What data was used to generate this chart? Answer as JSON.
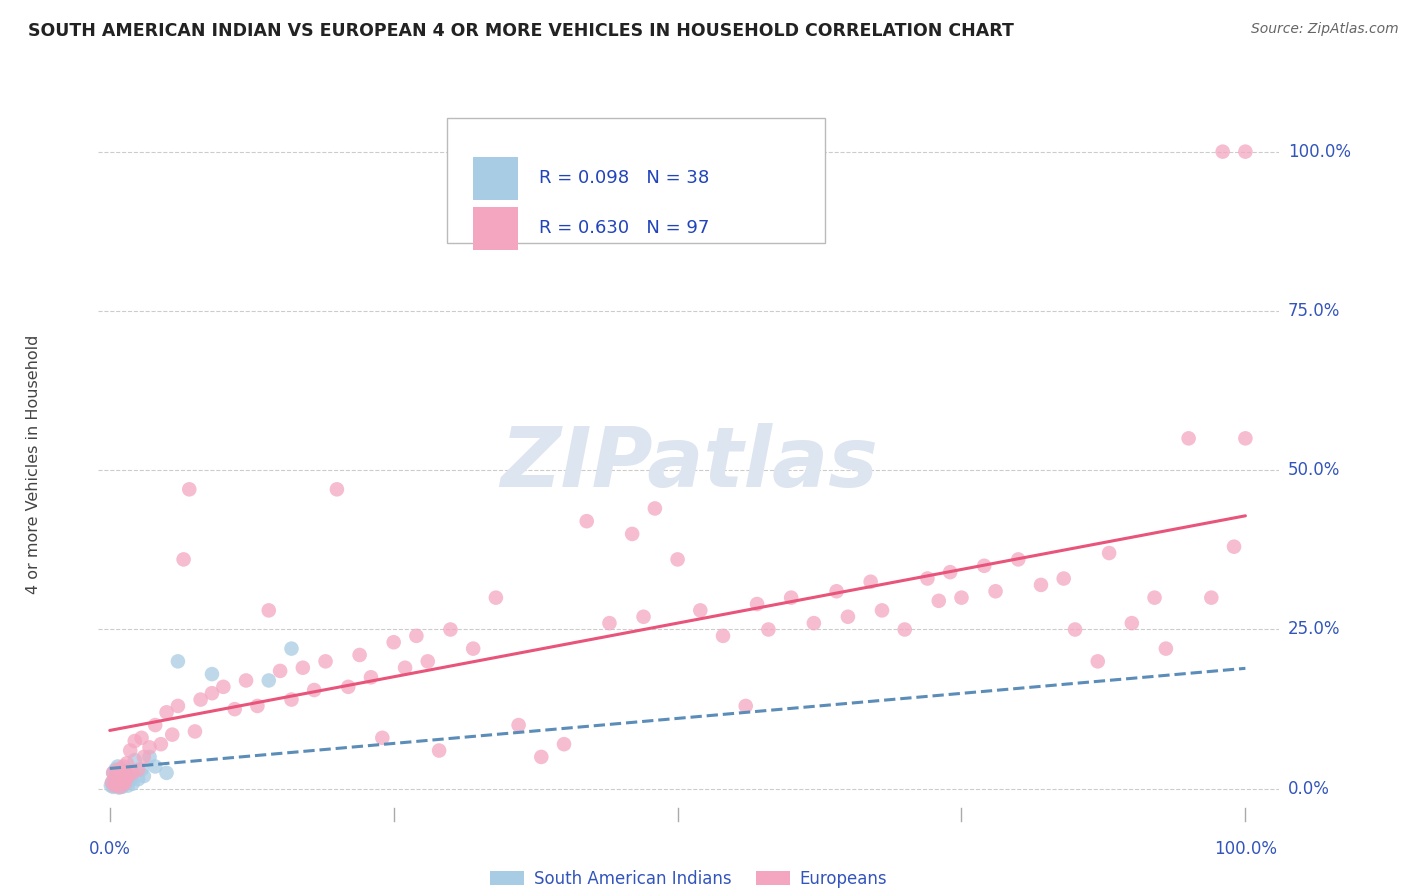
{
  "title": "SOUTH AMERICAN INDIAN VS EUROPEAN 4 OR MORE VEHICLES IN HOUSEHOLD CORRELATION CHART",
  "source": "Source: ZipAtlas.com",
  "ylabel": "4 or more Vehicles in Household",
  "ytick_labels": [
    "0.0%",
    "25.0%",
    "50.0%",
    "75.0%",
    "100.0%"
  ],
  "ytick_values": [
    0,
    25,
    50,
    75,
    100
  ],
  "blue_R": "R = 0.098",
  "blue_N": "N = 38",
  "pink_R": "R = 0.630",
  "pink_N": "N = 97",
  "blue_scatter_color": "#a8cce4",
  "blue_line_color": "#5b8db8",
  "pink_scatter_color": "#f4a6c0",
  "pink_line_color": "#e8547a",
  "axis_label_color": "#3355bb",
  "watermark_color": "#dde5f0",
  "legend_text_color": "#2244bb",
  "title_color": "#222222",
  "source_color": "#666666",
  "ylabel_color": "#444444",
  "blue_x": [
    0.1,
    0.2,
    0.3,
    0.3,
    0.4,
    0.5,
    0.5,
    0.6,
    0.6,
    0.7,
    0.7,
    0.8,
    0.8,
    0.9,
    0.9,
    1.0,
    1.0,
    1.1,
    1.1,
    1.2,
    1.3,
    1.4,
    1.5,
    1.6,
    1.7,
    1.8,
    2.0,
    2.2,
    2.5,
    2.8,
    3.0,
    3.5,
    4.0,
    5.0,
    6.0,
    9.0,
    14.0,
    16.0
  ],
  "blue_y": [
    0.5,
    1.0,
    0.3,
    2.5,
    0.8,
    1.5,
    3.0,
    0.5,
    2.0,
    1.0,
    3.5,
    0.2,
    1.8,
    0.6,
    2.2,
    0.4,
    1.2,
    0.3,
    3.0,
    1.5,
    0.8,
    2.5,
    1.0,
    0.5,
    2.0,
    1.5,
    0.8,
    4.5,
    1.5,
    3.0,
    2.0,
    5.0,
    3.5,
    2.5,
    20.0,
    18.0,
    17.0,
    22.0
  ],
  "pink_x": [
    0.2,
    0.3,
    0.4,
    0.5,
    0.6,
    0.7,
    0.8,
    0.9,
    1.0,
    1.1,
    1.2,
    1.3,
    1.4,
    1.5,
    1.6,
    1.8,
    2.0,
    2.2,
    2.5,
    2.8,
    3.0,
    3.5,
    4.0,
    4.5,
    5.0,
    5.5,
    6.0,
    6.5,
    7.0,
    7.5,
    8.0,
    9.0,
    10.0,
    11.0,
    12.0,
    13.0,
    14.0,
    15.0,
    16.0,
    17.0,
    18.0,
    19.0,
    20.0,
    21.0,
    22.0,
    23.0,
    24.0,
    25.0,
    26.0,
    27.0,
    28.0,
    29.0,
    30.0,
    32.0,
    34.0,
    36.0,
    38.0,
    40.0,
    42.0,
    44.0,
    46.0,
    47.0,
    48.0,
    50.0,
    52.0,
    54.0,
    56.0,
    57.0,
    58.0,
    60.0,
    62.0,
    64.0,
    65.0,
    67.0,
    68.0,
    70.0,
    72.0,
    73.0,
    74.0,
    75.0,
    77.0,
    78.0,
    80.0,
    82.0,
    84.0,
    85.0,
    87.0,
    88.0,
    90.0,
    92.0,
    93.0,
    95.0,
    97.0,
    98.0,
    99.0,
    100.0,
    100.0
  ],
  "pink_y": [
    1.0,
    2.5,
    0.5,
    1.8,
    0.8,
    3.0,
    1.5,
    0.3,
    2.0,
    1.0,
    3.5,
    0.8,
    1.5,
    4.0,
    2.0,
    6.0,
    2.5,
    7.5,
    3.0,
    8.0,
    5.0,
    6.5,
    10.0,
    7.0,
    12.0,
    8.5,
    13.0,
    36.0,
    47.0,
    9.0,
    14.0,
    15.0,
    16.0,
    12.5,
    17.0,
    13.0,
    28.0,
    18.5,
    14.0,
    19.0,
    15.5,
    20.0,
    47.0,
    16.0,
    21.0,
    17.5,
    8.0,
    23.0,
    19.0,
    24.0,
    20.0,
    6.0,
    25.0,
    22.0,
    30.0,
    10.0,
    5.0,
    7.0,
    42.0,
    26.0,
    40.0,
    27.0,
    44.0,
    36.0,
    28.0,
    24.0,
    13.0,
    29.0,
    25.0,
    30.0,
    26.0,
    31.0,
    27.0,
    32.5,
    28.0,
    25.0,
    33.0,
    29.5,
    34.0,
    30.0,
    35.0,
    31.0,
    36.0,
    32.0,
    33.0,
    25.0,
    20.0,
    37.0,
    26.0,
    30.0,
    22.0,
    55.0,
    30.0,
    100.0,
    38.0,
    100.0,
    55.0
  ]
}
